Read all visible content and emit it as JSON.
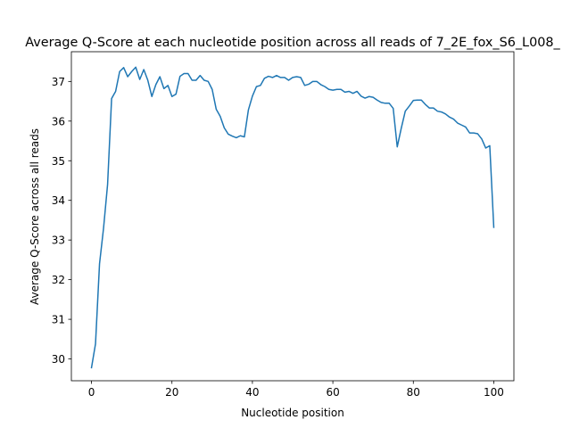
{
  "chart_data": {
    "type": "line",
    "title": "Average Q-Score at each nucleotide position across all reads of 7_2E_fox_S6_L008_",
    "xlabel": "Nucleotide position",
    "ylabel": "Average Q-Score across all reads",
    "xlim": [
      -5,
      105
    ],
    "ylim": [
      29.45,
      37.75
    ],
    "xticks": [
      0,
      20,
      40,
      60,
      80,
      100
    ],
    "yticks": [
      30,
      31,
      32,
      33,
      34,
      35,
      36,
      37
    ],
    "grid": false,
    "line_color": "#1f77b4",
    "series": [
      {
        "x": [
          0,
          1,
          2,
          3,
          4,
          5,
          6,
          7,
          8,
          9,
          10,
          11,
          12,
          13,
          14,
          15,
          16,
          17,
          18,
          19,
          20,
          21,
          22,
          23,
          24,
          25,
          26,
          27,
          28,
          29,
          30,
          31,
          32,
          33,
          34,
          35,
          36,
          37,
          38,
          39,
          40,
          41,
          42,
          43,
          44,
          45,
          46,
          47,
          48,
          49,
          50,
          51,
          52,
          53,
          54,
          55,
          56,
          57,
          58,
          59,
          60,
          61,
          62,
          63,
          64,
          65,
          66,
          67,
          68,
          69,
          70,
          71,
          72,
          73,
          74,
          75,
          76,
          77,
          78,
          79,
          80,
          81,
          82,
          83,
          84,
          85,
          86,
          87,
          88,
          89,
          90,
          91,
          92,
          93,
          94,
          95,
          96,
          97,
          98,
          99,
          100
        ],
        "values": [
          29.78,
          30.38,
          32.4,
          33.3,
          34.4,
          36.57,
          36.75,
          37.25,
          37.35,
          37.12,
          37.25,
          37.36,
          37.05,
          37.3,
          37.03,
          36.62,
          36.92,
          37.12,
          36.82,
          36.9,
          36.62,
          36.68,
          37.13,
          37.2,
          37.2,
          37.03,
          37.03,
          37.15,
          37.03,
          37.0,
          36.8,
          36.3,
          36.12,
          35.83,
          35.67,
          35.62,
          35.58,
          35.63,
          35.6,
          36.28,
          36.63,
          36.87,
          36.9,
          37.08,
          37.13,
          37.1,
          37.15,
          37.1,
          37.1,
          37.03,
          37.1,
          37.12,
          37.1,
          36.9,
          36.93,
          37.0,
          37.0,
          36.92,
          36.87,
          36.8,
          36.78,
          36.8,
          36.8,
          36.73,
          36.75,
          36.7,
          36.75,
          36.63,
          36.58,
          36.62,
          36.6,
          36.53,
          36.47,
          36.45,
          36.45,
          36.32,
          35.35,
          35.82,
          36.25,
          36.38,
          36.52,
          36.53,
          36.53,
          36.42,
          36.33,
          36.33,
          36.25,
          36.23,
          36.18,
          36.1,
          36.05,
          35.95,
          35.9,
          35.85,
          35.7,
          35.7,
          35.68,
          35.55,
          35.32,
          35.38,
          33.32
        ]
      }
    ]
  }
}
